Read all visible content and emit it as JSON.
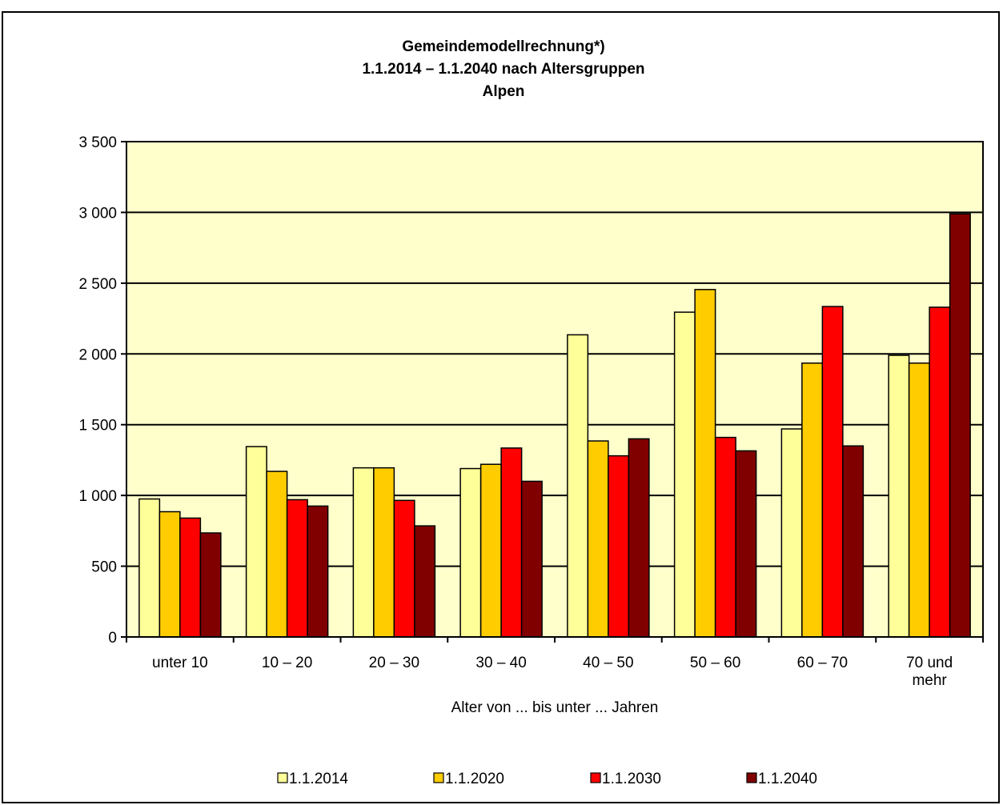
{
  "chart_data": {
    "type": "bar",
    "title_lines": [
      "Gemeindemodellrechnung*)",
      "1.1.2014 – 1.1.2040 nach Altersgruppen",
      "Alpen"
    ],
    "categories": [
      [
        "unter 10"
      ],
      [
        "10 – 20"
      ],
      [
        "20 – 30"
      ],
      [
        "30 – 40"
      ],
      [
        "40 – 50"
      ],
      [
        "50 – 60"
      ],
      [
        "60 – 70"
      ],
      [
        "70 und",
        "mehr"
      ]
    ],
    "series": [
      {
        "name": "1.1.2014",
        "color": "#ffff99",
        "values": [
          975,
          1345,
          1195,
          1190,
          2135,
          2295,
          1470,
          1990
        ]
      },
      {
        "name": "1.1.2020",
        "color": "#ffcc00",
        "values": [
          885,
          1170,
          1195,
          1220,
          1385,
          2455,
          1935,
          1935
        ]
      },
      {
        "name": "1.1.2030",
        "color": "#ff0000",
        "values": [
          840,
          970,
          965,
          1335,
          1280,
          1410,
          2335,
          2330
        ]
      },
      {
        "name": "1.1.2040",
        "color": "#800000",
        "values": [
          735,
          925,
          785,
          1100,
          1400,
          1315,
          1350,
          2990
        ]
      }
    ],
    "xlabel": "Alter von ... bis unter ... Jahren",
    "ylabel": "",
    "ylim": [
      0,
      3500
    ],
    "yticks": [
      {
        "value": 0,
        "label": "0"
      },
      {
        "value": 500,
        "label": "500"
      },
      {
        "value": 1000,
        "label": "1 000"
      },
      {
        "value": 1500,
        "label": "1 500"
      },
      {
        "value": 2000,
        "label": "2 000"
      },
      {
        "value": 2500,
        "label": "2 500"
      },
      {
        "value": 3000,
        "label": "3 000"
      },
      {
        "value": 3500,
        "label": "3 500"
      }
    ],
    "grid": true,
    "legend_position": "bottom",
    "plot_background": "#ffffcc"
  }
}
